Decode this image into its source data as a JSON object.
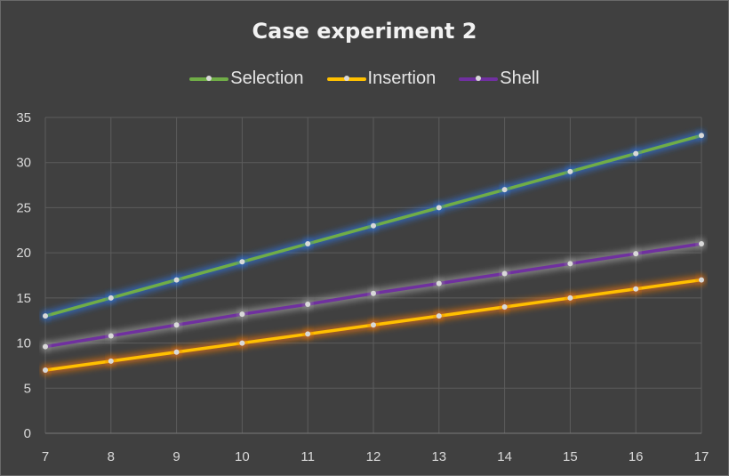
{
  "chart_data": {
    "type": "line",
    "title": "Case experiment 2",
    "xlabel": "",
    "ylabel": "",
    "x": [
      7,
      8,
      9,
      10,
      11,
      12,
      13,
      14,
      15,
      16,
      17
    ],
    "xlim": [
      7,
      17
    ],
    "ylim": [
      0,
      35
    ],
    "yticks": [
      0,
      5,
      10,
      15,
      20,
      25,
      30,
      35
    ],
    "grid": true,
    "legend_position": "top",
    "background_color": "#404040",
    "series": [
      {
        "name": "Selection",
        "color": "#70ad47",
        "glow": "#2f6fd6",
        "values": [
          13,
          15,
          17,
          19,
          21,
          23,
          25,
          27,
          29,
          31,
          33
        ]
      },
      {
        "name": "Insertion",
        "color": "#ffc000",
        "glow": "#e07010",
        "values": [
          7,
          8,
          9,
          10,
          11,
          12,
          13,
          14,
          15,
          16,
          17
        ]
      },
      {
        "name": "Shell",
        "color": "#7030a0",
        "glow": "#9a9a9a",
        "values": [
          9.6,
          10.8,
          12,
          13.2,
          14.3,
          15.5,
          16.6,
          17.7,
          18.8,
          19.9,
          21
        ]
      }
    ]
  }
}
